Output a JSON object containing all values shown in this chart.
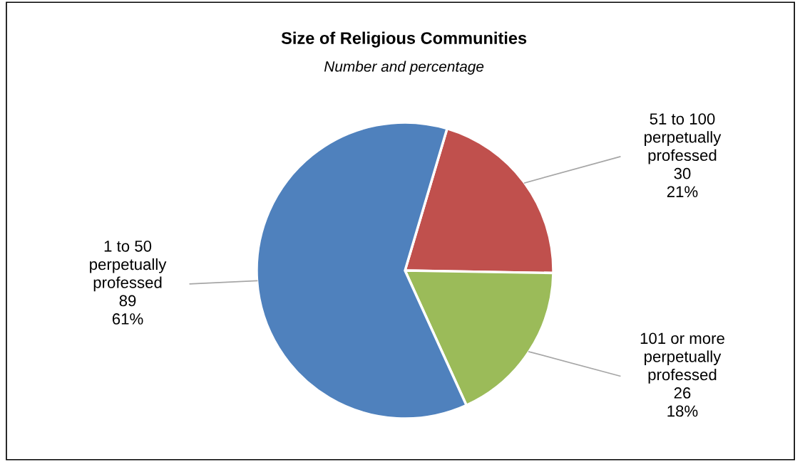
{
  "chart_data": {
    "type": "pie",
    "title": "Size of Religious Communities",
    "subtitle": "Number and percentage",
    "categories": [
      "51 to 100\nperpetually\nprofessed",
      "101 or more\nperpetually\nprofessed",
      "1 to 50\nperpetually\nprofessed"
    ],
    "values": [
      30,
      26,
      89
    ],
    "value_labels": [
      "30\n21%",
      "26\n18%",
      "89\n61%"
    ],
    "colors": [
      "#c0504d",
      "#9bbb59",
      "#4f81bd"
    ],
    "legend": false
  }
}
